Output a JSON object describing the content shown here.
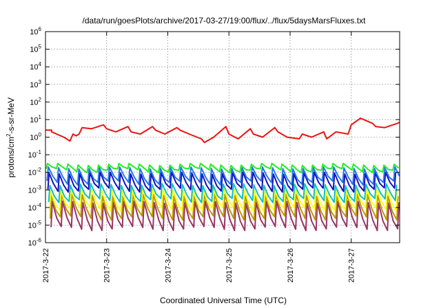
{
  "chart_data": {
    "type": "line",
    "title": "/data/run/goesPlots/archive/2017-03-27/19:00/flux/../flux/5daysMarsFluxes.txt",
    "xlabel": "Coordinated Universal Time (UTC)",
    "ylabel_base": "protons/cm",
    "ylabel_sup": "2",
    "ylabel_rest": "-s-sr-MeV",
    "x_ticks": [
      "2017-3-22",
      "2017-3-23",
      "2017-3-24",
      "2017-3-25",
      "2017-3-26",
      "2017-3-27"
    ],
    "xlim": [
      "2017-03-22 00:00",
      "2017-03-27 19:00"
    ],
    "y_scale": "log",
    "ylim": [
      1e-06,
      1000000.0
    ],
    "y_ticks": [
      {
        "base": "10",
        "exp": "6"
      },
      {
        "base": "10",
        "exp": "5"
      },
      {
        "base": "10",
        "exp": "4"
      },
      {
        "base": "10",
        "exp": "3"
      },
      {
        "base": "10",
        "exp": "2"
      },
      {
        "base": "10",
        "exp": "1"
      },
      {
        "base": "10",
        "exp": "0"
      },
      {
        "base": "10",
        "exp": "-1"
      },
      {
        "base": "10",
        "exp": "-2"
      },
      {
        "base": "10",
        "exp": "-3"
      },
      {
        "base": "10",
        "exp": "-4"
      },
      {
        "base": "10",
        "exp": "-5"
      },
      {
        "base": "10",
        "exp": "-6"
      }
    ],
    "grid": "dashed",
    "series": [
      {
        "color": "#ee1111",
        "t_days": [
          0.0,
          0.1,
          0.1,
          0.3,
          0.4,
          0.45,
          0.5,
          0.55,
          0.6,
          0.75,
          0.95,
          1.0,
          1.15,
          1.35,
          1.4,
          1.55,
          1.75,
          1.8,
          1.95,
          2.15,
          2.2,
          2.35,
          2.55,
          2.6,
          2.75,
          2.95,
          3.0,
          3.15,
          3.35,
          3.4,
          3.55,
          3.75,
          3.8,
          3.95,
          4.15,
          4.2,
          4.35,
          4.55,
          4.6,
          4.75,
          4.95,
          5.0,
          5.15,
          5.35,
          5.4,
          5.55,
          5.75,
          5.8
        ],
        "values": [
          2.5,
          2.5,
          2.0,
          1.0,
          0.6,
          1.5,
          1.2,
          1.5,
          3.5,
          3.0,
          5.0,
          3.0,
          2.0,
          4.0,
          2.0,
          1.5,
          4.0,
          2.5,
          1.5,
          3.5,
          2.5,
          1.5,
          0.8,
          0.5,
          1.0,
          4.0,
          1.5,
          0.8,
          3.0,
          1.5,
          1.0,
          3.5,
          2.0,
          1.0,
          0.8,
          1.5,
          1.0,
          2.0,
          0.8,
          2.0,
          1.5,
          5.0,
          12.0,
          6.0,
          4.0,
          3.5,
          6.0,
          7.0
        ]
      },
      {
        "color": "#22ee22",
        "log_min": -1.9,
        "log_max": -1.55
      },
      {
        "color": "#2277ee",
        "log_min": -2.6,
        "log_max": -1.75
      },
      {
        "color": "#1111bb",
        "log_min": -3.0,
        "log_max": -2.05
      },
      {
        "color": "#11c0c0",
        "log_min": -3.6,
        "log_max": -2.7
      },
      {
        "color": "#ffff22",
        "log_min": -4.1,
        "log_max": -3.0
      },
      {
        "color": "#bb9900",
        "log_min": -4.6,
        "log_max": -3.3
      },
      {
        "color": "#993366",
        "log_min": -5.2,
        "log_max": -3.7
      }
    ],
    "periodic_series_period_days": 0.1667
  }
}
